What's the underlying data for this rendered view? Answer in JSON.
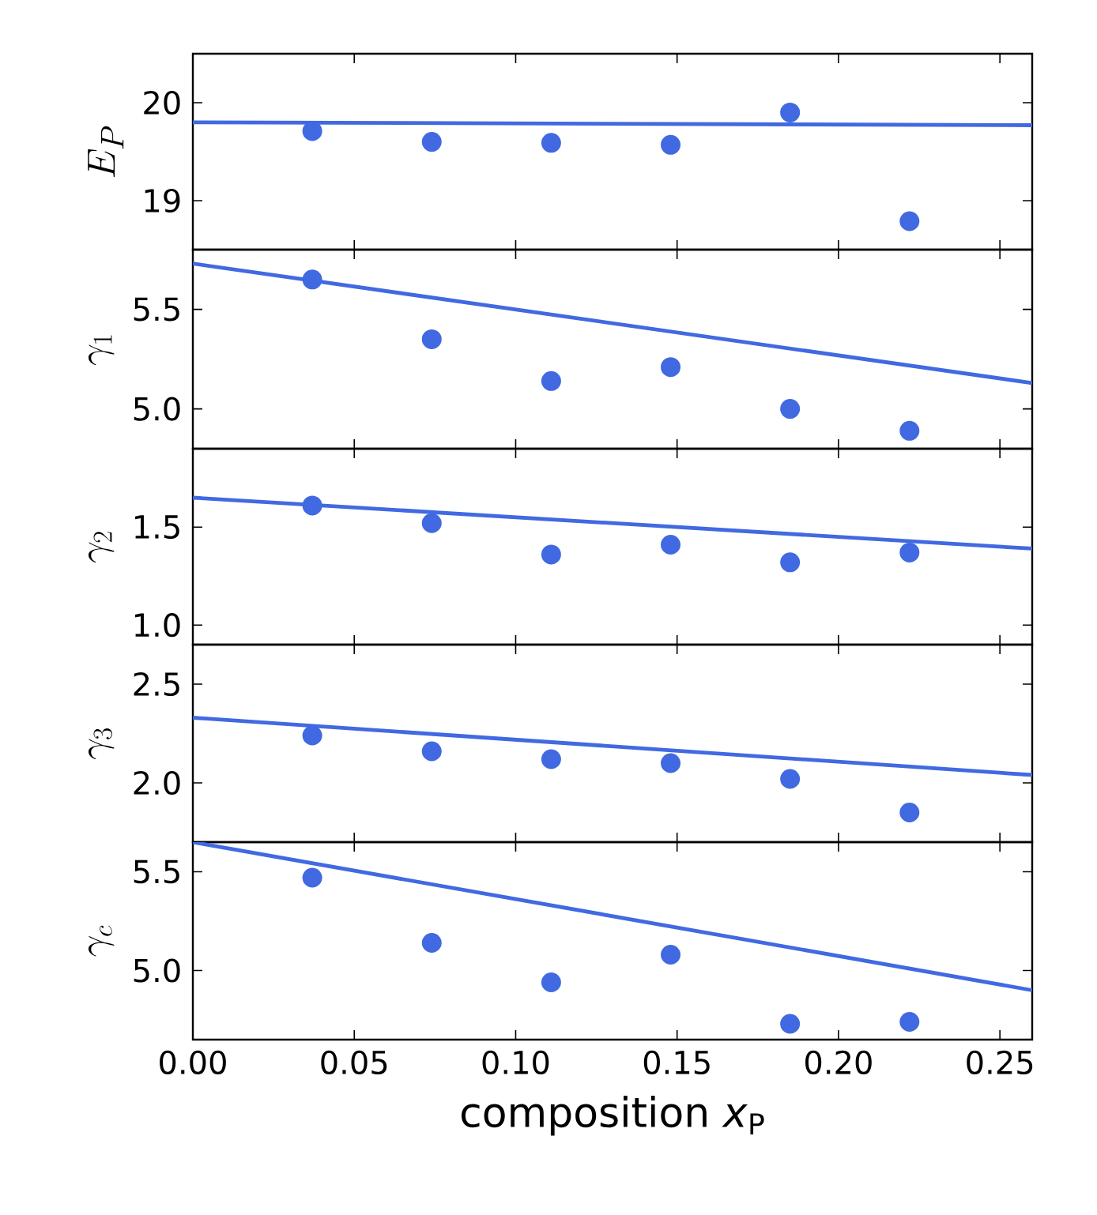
{
  "chart_data": [
    {
      "type": "scatter",
      "ylabel": "E_P",
      "xlim": [
        0,
        0.26
      ],
      "xticks": [
        {
          "value": 0,
          "label": null
        },
        {
          "value": 0.05,
          "label": null
        },
        {
          "value": 0.1,
          "label": null
        },
        {
          "value": 0.15,
          "label": null
        },
        {
          "value": 0.2,
          "label": null
        },
        {
          "value": 0.25,
          "label": null
        }
      ],
      "ylim": [
        18.5,
        20.5
      ],
      "yticks": [
        19,
        20
      ],
      "tick_labels": "y",
      "series": [
        {
          "type": "scatter",
          "marker": "circle",
          "color": "#4169e1",
          "x": [
            0.037,
            0.074,
            0.111,
            0.148,
            0.185,
            0.222
          ],
          "values": [
            19.71,
            19.6,
            19.59,
            19.57,
            19.9,
            18.79
          ]
        },
        {
          "type": "line",
          "color": "#4169e1",
          "x": [
            0,
            0.26
          ],
          "values": [
            19.8,
            19.77
          ]
        }
      ]
    },
    {
      "type": "scatter",
      "ylabel": "\\gamma_1",
      "xlim": [
        0,
        0.26
      ],
      "xticks": [
        {
          "value": 0,
          "label": null
        },
        {
          "value": 0.05,
          "label": null
        },
        {
          "value": 0.1,
          "label": null
        },
        {
          "value": 0.15,
          "label": null
        },
        {
          "value": 0.2,
          "label": null
        },
        {
          "value": 0.25,
          "label": null
        }
      ],
      "ylim": [
        4.8,
        5.8
      ],
      "yticks": [
        {
          "value": 5,
          "label": "5.0"
        },
        {
          "value": 5.5,
          "label": "5.5"
        }
      ],
      "tick_labels": "y",
      "series": [
        {
          "type": "scatter",
          "marker": "circle",
          "color": "#4169e1",
          "x": [
            0.037,
            0.074,
            0.111,
            0.148,
            0.185,
            0.222
          ],
          "values": [
            5.65,
            5.35,
            5.14,
            5.21,
            5.0,
            4.89
          ]
        },
        {
          "type": "line",
          "color": "#4169e1",
          "x": [
            0,
            0.26
          ],
          "values": [
            5.73,
            5.13
          ]
        }
      ]
    },
    {
      "type": "scatter",
      "ylabel": "\\gamma_2",
      "xlim": [
        0,
        0.26
      ],
      "xticks": [
        {
          "value": 0,
          "label": null
        },
        {
          "value": 0.05,
          "label": null
        },
        {
          "value": 0.1,
          "label": null
        },
        {
          "value": 0.15,
          "label": null
        },
        {
          "value": 0.2,
          "label": null
        },
        {
          "value": 0.25,
          "label": null
        }
      ],
      "ylim": [
        0.9,
        1.9
      ],
      "yticks": [
        {
          "value": 1,
          "label": "1.0"
        },
        {
          "value": 1.5,
          "label": "1.5"
        }
      ],
      "tick_labels": "y",
      "series": [
        {
          "type": "scatter",
          "marker": "circle",
          "color": "#4169e1",
          "x": [
            0.037,
            0.074,
            0.111,
            0.148,
            0.185,
            0.222
          ],
          "values": [
            1.61,
            1.52,
            1.36,
            1.41,
            1.32,
            1.37
          ]
        },
        {
          "type": "line",
          "color": "#4169e1",
          "x": [
            0,
            0.26
          ],
          "values": [
            1.65,
            1.39
          ]
        }
      ]
    },
    {
      "type": "scatter",
      "ylabel": "\\gamma_3",
      "xlim": [
        0,
        0.26
      ],
      "xticks": [
        {
          "value": 0,
          "label": null
        },
        {
          "value": 0.05,
          "label": null
        },
        {
          "value": 0.1,
          "label": null
        },
        {
          "value": 0.15,
          "label": null
        },
        {
          "value": 0.2,
          "label": null
        },
        {
          "value": 0.25,
          "label": null
        }
      ],
      "ylim": [
        1.7,
        2.7
      ],
      "yticks": [
        {
          "value": 2,
          "label": "2.0"
        },
        {
          "value": 2.5,
          "label": "2.5"
        }
      ],
      "tick_labels": "y",
      "series": [
        {
          "type": "scatter",
          "marker": "circle",
          "color": "#4169e1",
          "x": [
            0.037,
            0.074,
            0.111,
            0.148,
            0.185,
            0.222
          ],
          "values": [
            2.24,
            2.16,
            2.12,
            2.1,
            2.02,
            1.85
          ]
        },
        {
          "type": "line",
          "color": "#4169e1",
          "x": [
            0,
            0.26
          ],
          "values": [
            2.33,
            2.04
          ]
        }
      ]
    },
    {
      "type": "scatter",
      "ylabel": "\\gamma_c",
      "xlabel": "composition *x*$_{P}$",
      "xlim": [
        0,
        0.26
      ],
      "xticks": [
        {
          "value": 0,
          "label": "0.00"
        },
        {
          "value": 0.05,
          "label": "0.05"
        },
        {
          "value": 0.1,
          "label": "0.10"
        },
        {
          "value": 0.15,
          "label": "0.15"
        },
        {
          "value": 0.2,
          "label": "0.20"
        },
        {
          "value": 0.25,
          "label": "0.25"
        }
      ],
      "ylim": [
        4.65,
        5.65
      ],
      "yticks": [
        {
          "value": 5,
          "label": "5.0"
        },
        {
          "value": 5.5,
          "label": "5.5"
        }
      ],
      "series": [
        {
          "type": "scatter",
          "marker": "circle",
          "color": "#4169e1",
          "x": [
            0.037,
            0.074,
            0.111,
            0.148,
            0.185,
            0.222
          ],
          "values": [
            5.47,
            5.14,
            4.94,
            5.08,
            4.73,
            4.74
          ]
        },
        {
          "type": "line",
          "color": "#4169e1",
          "x": [
            0,
            0.26
          ],
          "values": [
            5.65,
            4.9
          ]
        }
      ]
    }
  ]
}
